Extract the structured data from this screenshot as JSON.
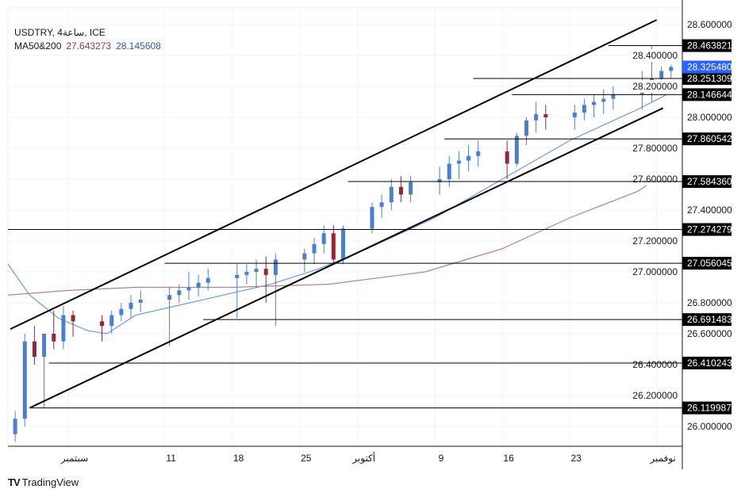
{
  "header": {
    "symbol_line": "USDTRY, 4ساعة, ICE",
    "ma_label": "MA50&200",
    "ma_values": [
      {
        "value": "27.643273",
        "color": "#8e3b45"
      },
      {
        "value": "28.145608",
        "color": "#2f5b9e"
      }
    ]
  },
  "brand": {
    "logo": "17",
    "name": "TradingView"
  },
  "chart_data": {
    "type": "candlestick",
    "x_range": [
      "08-25T18",
      "11-03T12"
    ],
    "ylim": [
      25.86,
      28.68
    ],
    "y_ticks": [
      "28.600000",
      "28.400000",
      "28.200000",
      "28.000000",
      "27.800000",
      "27.600000",
      "27.400000",
      "27.200000",
      "27.000000",
      "26.800000",
      "26.600000",
      "26.400000",
      "26.200000",
      "26.000000"
    ],
    "x_ticks": [
      {
        "date": "09-01",
        "label": "سبتمبر"
      },
      {
        "date": "09-11",
        "label": "11"
      },
      {
        "date": "09-18",
        "label": "18"
      },
      {
        "date": "09-25",
        "label": "25"
      },
      {
        "date": "10-01",
        "label": "أكتوبر"
      },
      {
        "date": "10-09",
        "label": "9"
      },
      {
        "date": "10-16",
        "label": "16"
      },
      {
        "date": "10-23",
        "label": "23"
      },
      {
        "date": "11-01",
        "label": "نوفمبر"
      }
    ],
    "colors": {
      "up": "#4a7fd0",
      "down": "#9b2335",
      "ma_fast": "#6a9ae0",
      "ma_slow": "#b98088",
      "current_price": "#2962ff"
    },
    "candles": [
      [
        "08-26",
        25.95,
        26.1,
        25.9,
        26.05
      ],
      [
        "08-27",
        26.05,
        26.6,
        26.0,
        26.55
      ],
      [
        "08-28",
        26.55,
        26.65,
        26.4,
        26.45
      ],
      [
        "08-29",
        26.45,
        26.6,
        26.12,
        26.6
      ],
      [
        "08-30",
        26.6,
        26.75,
        26.5,
        26.55
      ],
      [
        "08-31",
        26.55,
        26.78,
        26.5,
        26.72
      ],
      [
        "09-01",
        26.72,
        26.75,
        26.58,
        26.68
      ],
      [
        "09-04",
        26.68,
        26.72,
        26.55,
        26.65
      ],
      [
        "09-05",
        26.65,
        26.75,
        26.6,
        26.72
      ],
      [
        "09-06",
        26.72,
        26.8,
        26.68,
        26.76
      ],
      [
        "09-07",
        26.76,
        26.85,
        26.7,
        26.8
      ],
      [
        "09-08",
        26.8,
        26.88,
        26.74,
        26.82
      ],
      [
        "09-11",
        26.82,
        26.9,
        26.52,
        26.85
      ],
      [
        "09-12",
        26.85,
        26.92,
        26.8,
        26.88
      ],
      [
        "09-13",
        26.88,
        27.0,
        26.82,
        26.9
      ],
      [
        "09-14",
        26.9,
        26.98,
        26.84,
        26.93
      ],
      [
        "09-15",
        26.93,
        27.02,
        26.88,
        26.96
      ],
      [
        "09-18",
        26.96,
        27.05,
        26.7,
        26.98
      ],
      [
        "09-19",
        26.98,
        27.05,
        26.92,
        27.0
      ],
      [
        "09-20",
        27.0,
        27.08,
        26.9,
        27.02
      ],
      [
        "09-21",
        27.02,
        27.1,
        26.8,
        26.98
      ],
      [
        "09-22",
        26.98,
        27.12,
        26.65,
        27.08
      ],
      [
        "09-25",
        27.08,
        27.15,
        27.0,
        27.12
      ],
      [
        "09-26",
        27.12,
        27.22,
        27.05,
        27.18
      ],
      [
        "09-27",
        27.18,
        27.3,
        27.12,
        27.25
      ],
      [
        "09-28",
        27.25,
        27.3,
        27.05,
        27.08
      ],
      [
        "09-29",
        27.08,
        27.3,
        27.05,
        27.28
      ],
      [
        "10-02",
        27.28,
        27.45,
        27.25,
        27.42
      ],
      [
        "10-03",
        27.42,
        27.5,
        27.35,
        27.45
      ],
      [
        "10-04",
        27.45,
        27.6,
        27.4,
        27.55
      ],
      [
        "10-05",
        27.55,
        27.62,
        27.45,
        27.5
      ],
      [
        "10-06",
        27.5,
        27.62,
        27.45,
        27.58
      ],
      [
        "10-09",
        27.58,
        27.68,
        27.5,
        27.6
      ],
      [
        "10-10",
        27.6,
        27.75,
        27.55,
        27.7
      ],
      [
        "10-11",
        27.7,
        27.78,
        27.6,
        27.72
      ],
      [
        "10-12",
        27.72,
        27.82,
        27.65,
        27.75
      ],
      [
        "10-13",
        27.75,
        27.85,
        27.68,
        27.78
      ],
      [
        "10-16",
        27.78,
        27.85,
        27.6,
        27.7
      ],
      [
        "10-17",
        27.7,
        27.9,
        27.68,
        27.88
      ],
      [
        "10-18",
        27.88,
        28.0,
        27.82,
        27.98
      ],
      [
        "10-19",
        27.98,
        28.1,
        27.9,
        28.02
      ],
      [
        "10-20",
        28.02,
        28.08,
        27.92,
        28.0
      ],
      [
        "10-23",
        28.0,
        28.08,
        27.92,
        28.03
      ],
      [
        "10-24",
        28.03,
        28.12,
        27.98,
        28.08
      ],
      [
        "10-25",
        28.08,
        28.15,
        28.0,
        28.1
      ],
      [
        "10-26",
        28.1,
        28.18,
        28.02,
        28.12
      ],
      [
        "10-27",
        28.12,
        28.2,
        28.05,
        28.15
      ],
      [
        "10-30",
        28.15,
        28.3,
        28.05,
        28.22
      ],
      [
        "10-31",
        28.22,
        28.46,
        28.1,
        28.25
      ],
      [
        "11-01",
        28.25,
        28.33,
        28.18,
        28.3
      ],
      [
        "11-02",
        28.3,
        28.34,
        28.25,
        28.32548
      ]
    ],
    "ma_fast": [
      [
        "08-25T18",
        27.05
      ],
      [
        "08-28",
        26.85
      ],
      [
        "08-31",
        26.7
      ],
      [
        "09-03",
        26.62
      ],
      [
        "09-05",
        26.6
      ],
      [
        "09-08",
        26.72
      ],
      [
        "09-15",
        26.82
      ],
      [
        "09-22",
        26.92
      ],
      [
        "09-27",
        27.02
      ],
      [
        "10-02",
        27.15
      ],
      [
        "10-09",
        27.35
      ],
      [
        "10-16",
        27.6
      ],
      [
        "10-23",
        27.85
      ],
      [
        "10-30",
        28.05
      ],
      [
        "11-02",
        28.145608
      ]
    ],
    "ma_slow": [
      [
        "08-25T18",
        26.85
      ],
      [
        "09-01",
        26.88
      ],
      [
        "09-08",
        26.9
      ],
      [
        "09-18",
        26.9
      ],
      [
        "09-28",
        26.92
      ],
      [
        "10-08",
        27.0
      ],
      [
        "10-16",
        27.15
      ],
      [
        "10-23",
        27.35
      ],
      [
        "10-30",
        27.52
      ],
      [
        "11-02",
        27.643273
      ]
    ],
    "trend_lines": [
      {
        "from": [
          "08-26",
          26.63
        ],
        "to": [
          "11-01",
          28.63
        ]
      },
      {
        "from": [
          "08-28",
          26.12
        ],
        "to": [
          "11-01T16",
          28.06
        ]
      }
    ],
    "levels": [
      {
        "from": "10-27",
        "value": 28.463821,
        "label": "28.463821"
      },
      {
        "from": "10-13",
        "value": 28.251309,
        "label": "28.251309"
      },
      {
        "from": "10-17",
        "value": 28.146644,
        "label": "28.146644"
      },
      {
        "from": "10-10",
        "value": 27.860542,
        "label": "27.860542"
      },
      {
        "from": "09-30",
        "value": 27.58436,
        "label": "27.584360"
      },
      {
        "from": "08-25T18",
        "value": 27.274279,
        "label": "27.274279"
      },
      {
        "from": "09-11",
        "value": 27.056045,
        "label": "27.056045"
      },
      {
        "from": "09-15",
        "value": 26.691483,
        "label": "26.691483"
      },
      {
        "from": "08-30",
        "value": 26.410243,
        "label": "26.410243"
      },
      {
        "from": "08-28",
        "value": 26.119987,
        "label": "26.119987"
      }
    ],
    "current_price": {
      "value": 28.32548,
      "label": "28.325480"
    }
  }
}
